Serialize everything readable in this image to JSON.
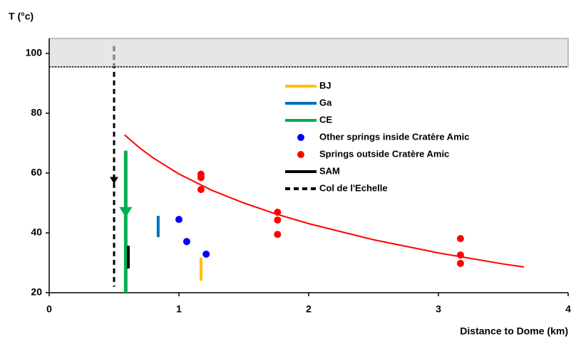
{
  "chart_data": {
    "type": "scatter",
    "ylabel": "T (°c)",
    "xlabel": "Distance to Dome (km)",
    "xlim": [
      0,
      4
    ],
    "ylim": [
      20,
      105
    ],
    "xticks": [
      0,
      1,
      2,
      3,
      4
    ],
    "yticks": [
      20,
      40,
      60,
      80,
      100
    ],
    "shaded_range": [
      95.5,
      105
    ],
    "series": [
      {
        "name": "BJ",
        "color": "#ffc000",
        "kind": "segment",
        "x": [
          1.17,
          1.17
        ],
        "values": [
          24,
          31.7
        ]
      },
      {
        "name": "Ga",
        "color": "#0070c0",
        "kind": "segment",
        "x": [
          0.84,
          0.84
        ],
        "values": [
          38.6,
          45.7
        ]
      },
      {
        "name": "CE",
        "color": "#00b050",
        "kind": "arrow",
        "x": [
          0.59,
          0.59
        ],
        "values": [
          67.5,
          20
        ],
        "arrow": 45.2
      },
      {
        "name": "Other springs inside Cratère Amic",
        "color": "#0000ff",
        "kind": "points",
        "x": [
          1.0,
          1.06,
          1.21
        ],
        "values": [
          44.5,
          37.1,
          32.9
        ]
      },
      {
        "name": "Springs outside Cratère Amic",
        "color": "#ff0000",
        "kind": "points",
        "x": [
          1.17,
          1.17,
          1.17,
          1.76,
          1.76,
          1.76,
          3.17,
          3.17,
          3.17
        ],
        "values": [
          59.6,
          58.5,
          54.5,
          46.9,
          44.3,
          39.5,
          38.1,
          32.6,
          29.8
        ]
      },
      {
        "name": "SAM",
        "color": "#000000",
        "kind": "segment",
        "x": [
          0.61,
          0.61
        ],
        "values": [
          28.1,
          35.7
        ]
      },
      {
        "name": "Col de l'Echelle",
        "color": "#000000",
        "kind": "dashed-arrow",
        "x": [
          0.5,
          0.5
        ],
        "values": [
          102.4,
          22
        ],
        "arrow": 56.4
      }
    ],
    "curve": {
      "color": "#ff0000",
      "x": [
        0.58,
        0.7,
        0.8,
        1.0,
        1.25,
        1.5,
        1.75,
        2.0,
        2.5,
        3.0,
        3.5,
        3.66
      ],
      "values": [
        72.8,
        68.3,
        65.1,
        59.7,
        54.3,
        50.0,
        46.3,
        43.1,
        37.7,
        33.3,
        29.6,
        28.6
      ]
    }
  }
}
